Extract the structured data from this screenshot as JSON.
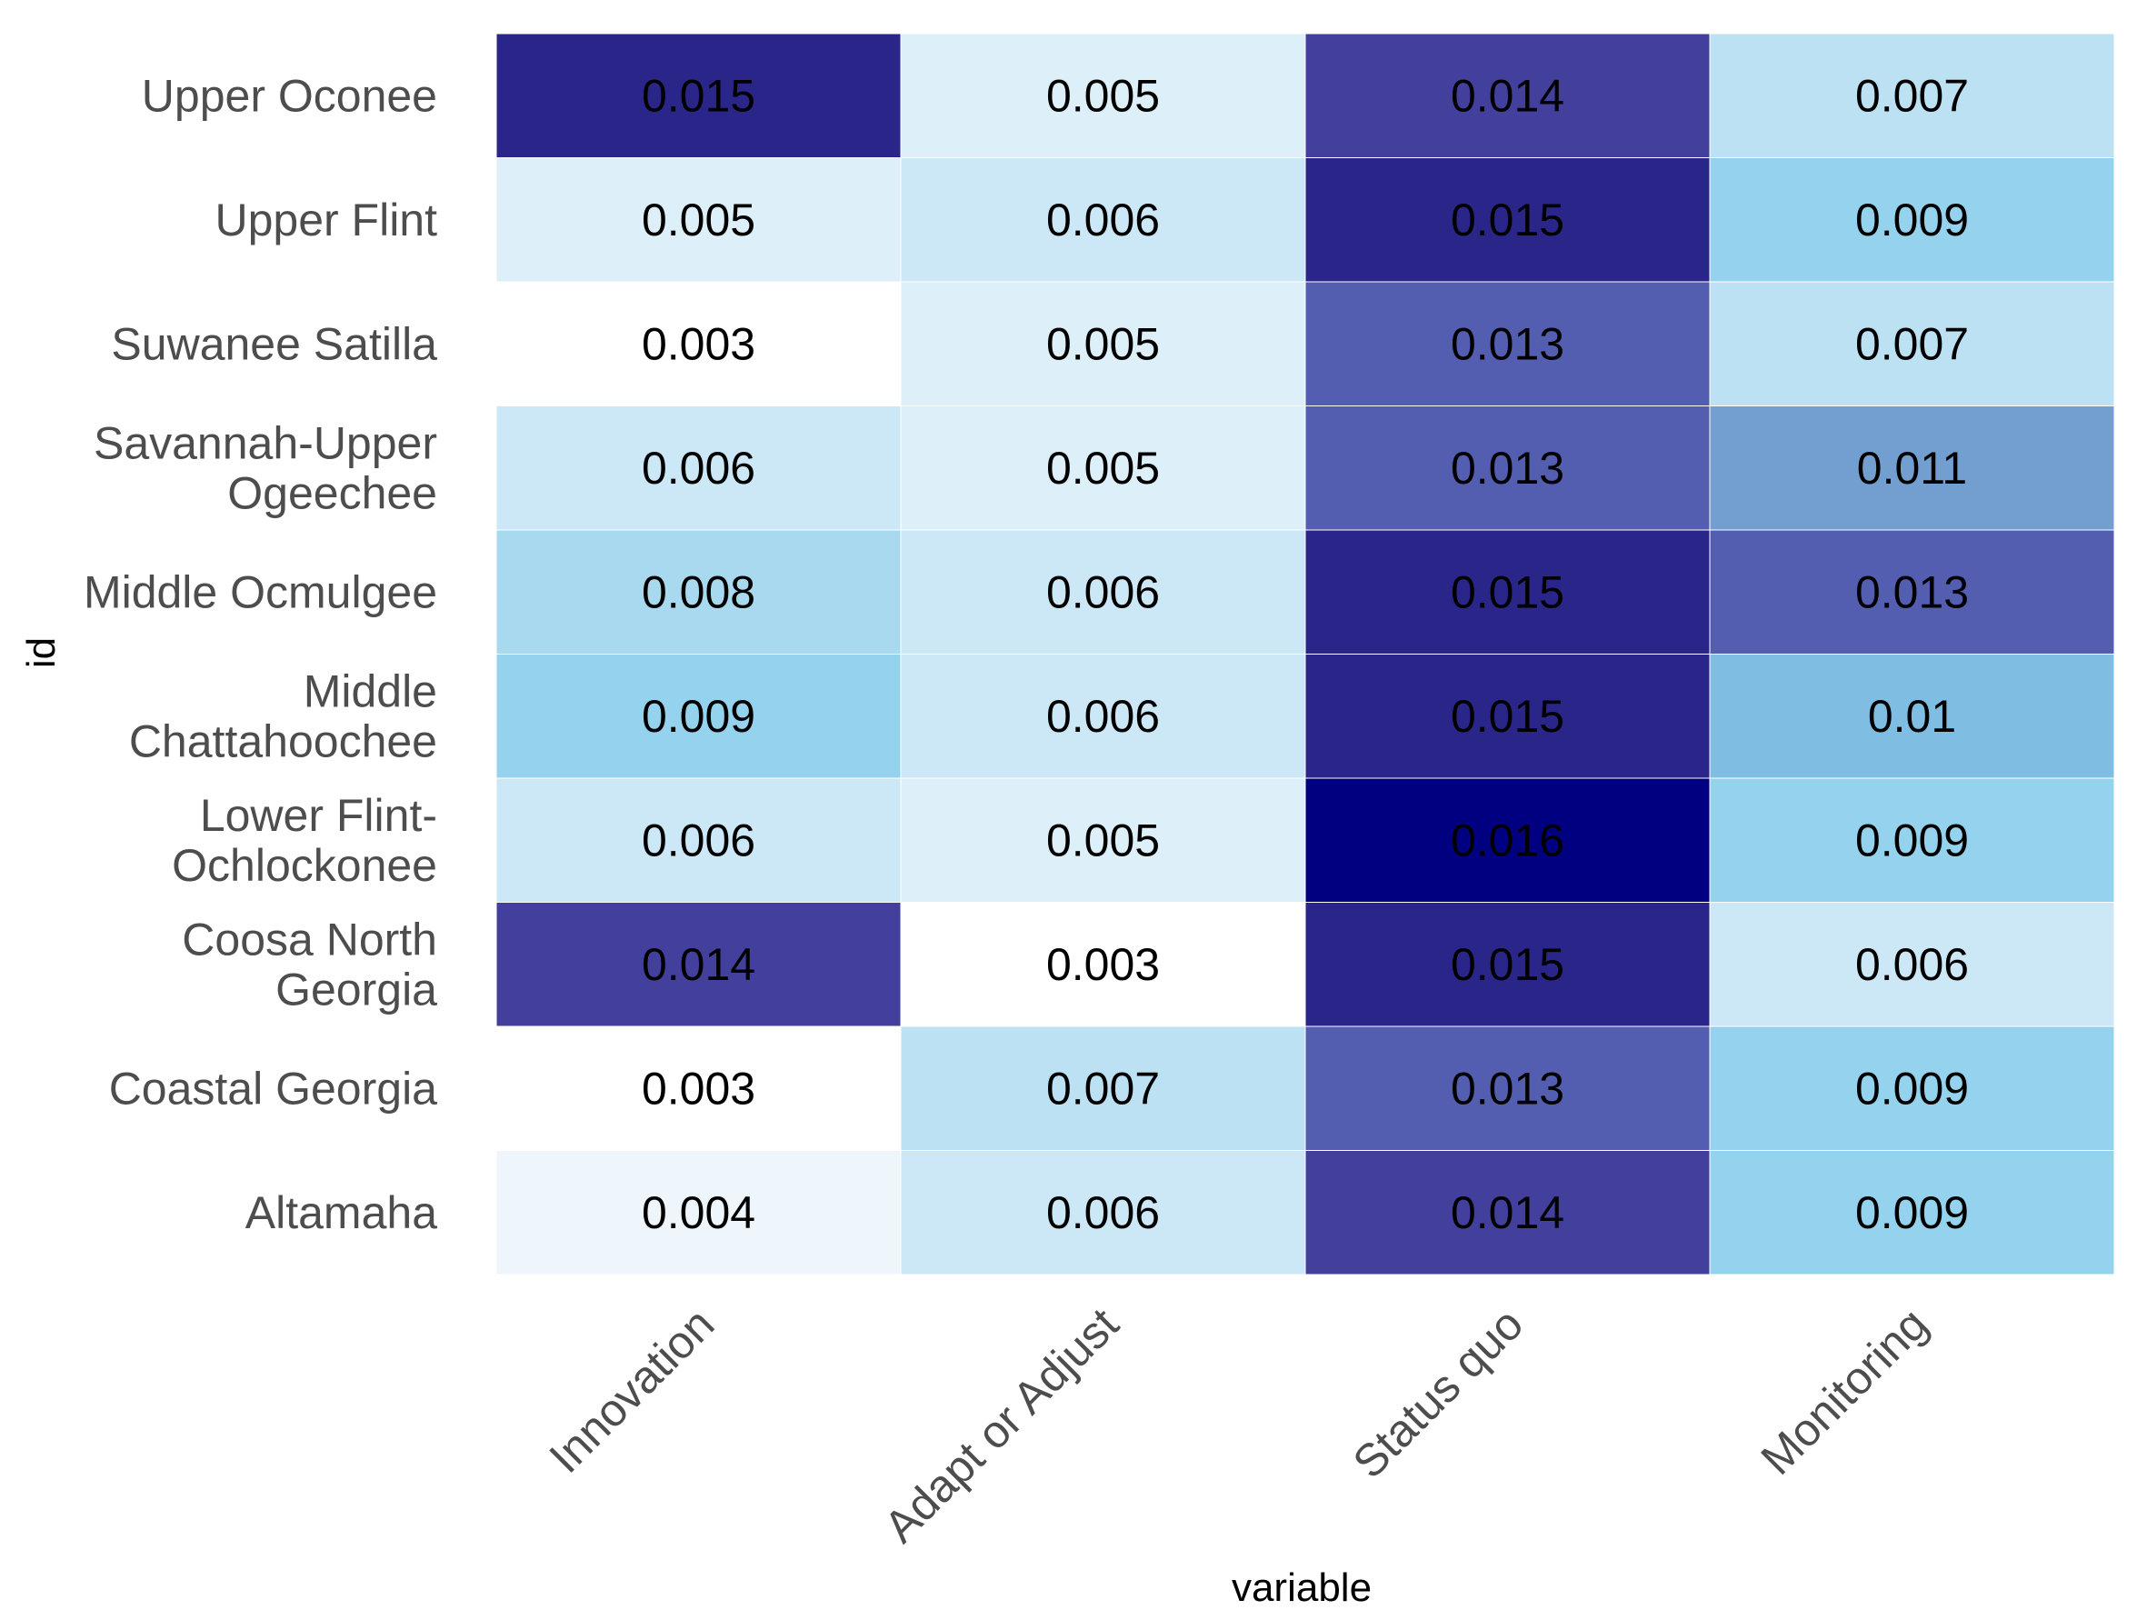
{
  "chart_data": {
    "type": "heatmap",
    "xlabel": "variable",
    "ylabel": "id",
    "x_categories": [
      "Innovation",
      "Adapt or Adjust",
      "Status quo",
      "Monitoring"
    ],
    "y_categories": [
      [
        "Upper Oconee"
      ],
      [
        "Upper Flint"
      ],
      [
        "Suwanee Satilla"
      ],
      [
        "Savannah-Upper",
        "Ogeechee"
      ],
      [
        "Middle Ocmulgee"
      ],
      [
        "Middle",
        "Chattahoochee"
      ],
      [
        "Lower Flint-",
        "Ochlockonee"
      ],
      [
        "Coosa North",
        "Georgia"
      ],
      [
        "Coastal Georgia"
      ],
      [
        "Altamaha"
      ]
    ],
    "values": [
      [
        0.015,
        0.005,
        0.014,
        0.007
      ],
      [
        0.005,
        0.006,
        0.015,
        0.009
      ],
      [
        0.003,
        0.005,
        0.013,
        0.007
      ],
      [
        0.006,
        0.005,
        0.013,
        0.011
      ],
      [
        0.008,
        0.006,
        0.015,
        0.013
      ],
      [
        0.009,
        0.006,
        0.015,
        0.01
      ],
      [
        0.006,
        0.005,
        0.016,
        0.009
      ],
      [
        0.014,
        0.003,
        0.015,
        0.006
      ],
      [
        0.003,
        0.007,
        0.013,
        0.009
      ],
      [
        0.004,
        0.006,
        0.014,
        0.009
      ]
    ],
    "cell_labels": [
      [
        "0.015",
        "0.005",
        "0.014",
        "0.007"
      ],
      [
        "0.005",
        "0.006",
        "0.015",
        "0.009"
      ],
      [
        "0.003",
        "0.005",
        "0.013",
        "0.007"
      ],
      [
        "0.006",
        "0.005",
        "0.013",
        "0.011"
      ],
      [
        "0.008",
        "0.006",
        "0.015",
        "0.013"
      ],
      [
        "0.009",
        "0.006",
        "0.015",
        "0.01"
      ],
      [
        "0.006",
        "0.005",
        "0.016",
        "0.009"
      ],
      [
        "0.014",
        "0.003",
        "0.015",
        "0.006"
      ],
      [
        "0.003",
        "0.007",
        "0.013",
        "0.009"
      ],
      [
        "0.004",
        "0.006",
        "0.014",
        "0.009"
      ]
    ],
    "color_scale": {
      "min": 0.003,
      "max": 0.016,
      "stops": [
        {
          "value": 0.003,
          "color": "#ffffff"
        },
        {
          "value": 0.004,
          "color": "#eef6fc"
        },
        {
          "value": 0.005,
          "color": "#ddeff9"
        },
        {
          "value": 0.006,
          "color": "#cce7f5"
        },
        {
          "value": 0.007,
          "color": "#bce1f3"
        },
        {
          "value": 0.008,
          "color": "#a8d9ef"
        },
        {
          "value": 0.009,
          "color": "#94d2ed"
        },
        {
          "value": 0.01,
          "color": "#7fbde3"
        },
        {
          "value": 0.011,
          "color": "#739ed0"
        },
        {
          "value": 0.013,
          "color": "#535eb0"
        },
        {
          "value": 0.014,
          "color": "#42409c"
        },
        {
          "value": 0.015,
          "color": "#2a2689"
        },
        {
          "value": 0.016,
          "color": "#000080"
        }
      ]
    },
    "grid": false,
    "legend": "none"
  }
}
